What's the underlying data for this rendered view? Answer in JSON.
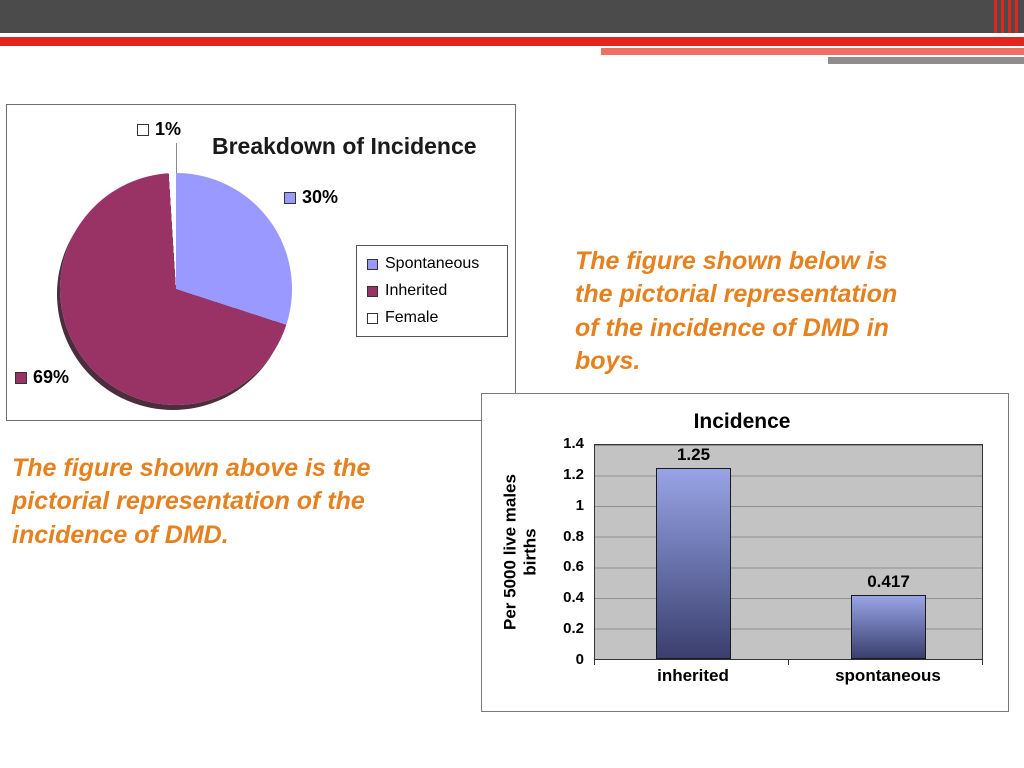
{
  "slide": {
    "captions": {
      "above_left": "The figure shown above is the pictorial representation of the incidence of DMD.",
      "below_right": "The figure shown below is the pictorial representation of the incidence of DMD in boys."
    }
  },
  "theme": {
    "header_dark": "#4b4b4b",
    "stripe_red": "#e2251f",
    "stripe_salmon": "#ef6f62",
    "stripe_gray": "#8d8d8d",
    "caption_orange": "#e5811f"
  },
  "chart_data": [
    {
      "type": "pie",
      "title": "Breakdown of Incidence",
      "labels": [
        "Spontaneous",
        "Inherited",
        "Female"
      ],
      "values": [
        30,
        69,
        1
      ],
      "colors": [
        "#9999ff",
        "#993366",
        "#ffffff"
      ],
      "slice_labels": [
        "30%",
        "69%",
        "1%"
      ],
      "legend_position": "right"
    },
    {
      "type": "bar",
      "title": "Incidence",
      "categories": [
        "inherited",
        "spontaneous"
      ],
      "values": [
        1.25,
        0.417
      ],
      "value_labels": [
        "1.25",
        "0.417"
      ],
      "xlabel": "",
      "ylabel": "Per 5000 live males births",
      "ylim": [
        0,
        1.4
      ],
      "yticks": [
        "0",
        "0.2",
        "0.4",
        "0.6",
        "0.8",
        "1",
        "1.2",
        "1.4"
      ],
      "grid": true,
      "plot_bg": "#c3c3c3",
      "bar_color_bottom": "#3a3f6e",
      "bar_color_top": "#98a4e6",
      "legend_position": "none"
    }
  ]
}
